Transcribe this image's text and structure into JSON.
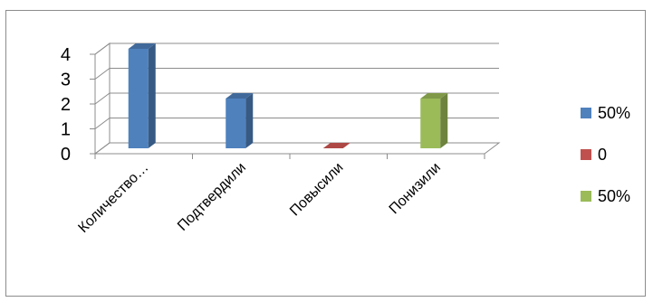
{
  "chart_data": {
    "type": "bar",
    "style": "3d-column",
    "categories": [
      "Количество…",
      "Подтвердили",
      "Повысили",
      "Понизили"
    ],
    "series": [
      {
        "name": "50%",
        "color": "#4f81bd",
        "values": [
          4,
          2,
          null,
          null
        ]
      },
      {
        "name": "0",
        "color": "#c0504d",
        "values": [
          null,
          null,
          0,
          null
        ]
      },
      {
        "name": "50%",
        "color": "#9bbb59",
        "values": [
          null,
          null,
          null,
          2
        ]
      }
    ],
    "yticks": [
      "0",
      "1",
      "2",
      "3",
      "4"
    ],
    "ylim": [
      0,
      4
    ],
    "grid": true,
    "legend": "right"
  }
}
